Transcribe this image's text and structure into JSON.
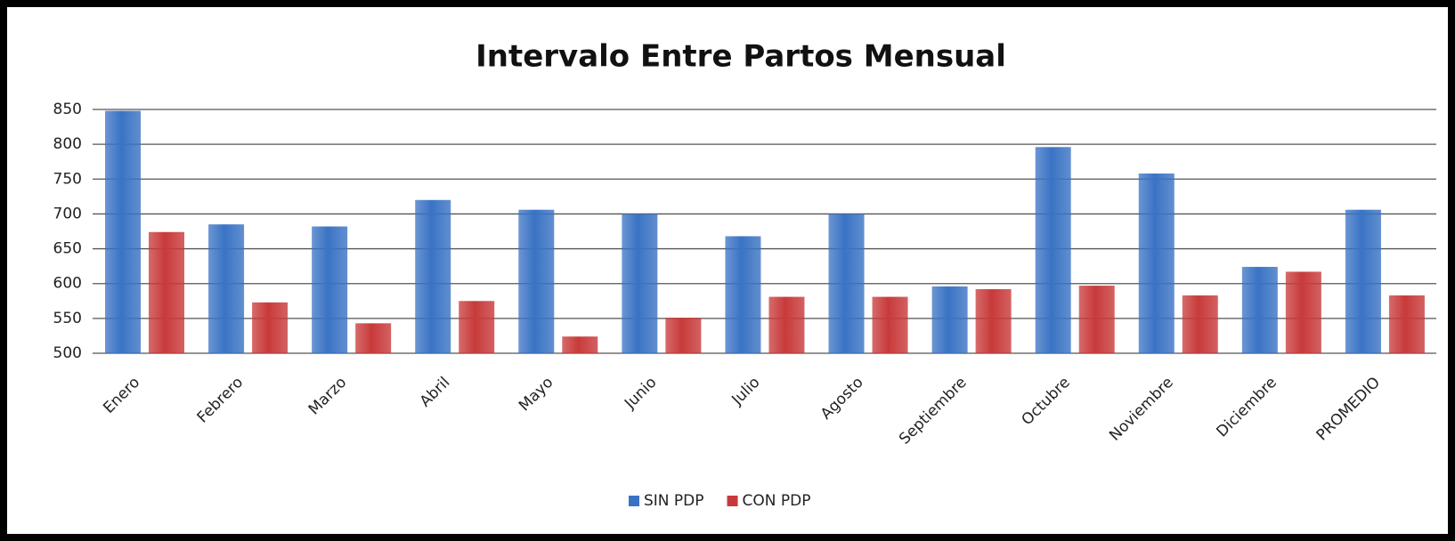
{
  "chart_data": {
    "type": "bar",
    "title": "Intervalo Entre Partos Mensual",
    "categories": [
      "Enero",
      "Febrero",
      "Marzo",
      "Abril",
      "Mayo",
      "Junio",
      "Julio",
      "Agosto",
      "Septiembre",
      "Octubre",
      "Noviembre",
      "Diciembre",
      "PROMEDIO"
    ],
    "series": [
      {
        "name": "SIN PDP",
        "color": "#3a73c4",
        "values": [
          848,
          685,
          682,
          720,
          706,
          700,
          668,
          700,
          596,
          796,
          758,
          624,
          706
        ]
      },
      {
        "name": "CON PDP",
        "color": "#c83a3a",
        "values": [
          674,
          573,
          543,
          575,
          524,
          551,
          581,
          581,
          592,
          597,
          583,
          617,
          583
        ]
      }
    ],
    "ylim": [
      500,
      850
    ],
    "yticks": [
      500,
      550,
      600,
      650,
      700,
      750,
      800,
      850
    ],
    "grid": true,
    "legend": "bottom"
  }
}
